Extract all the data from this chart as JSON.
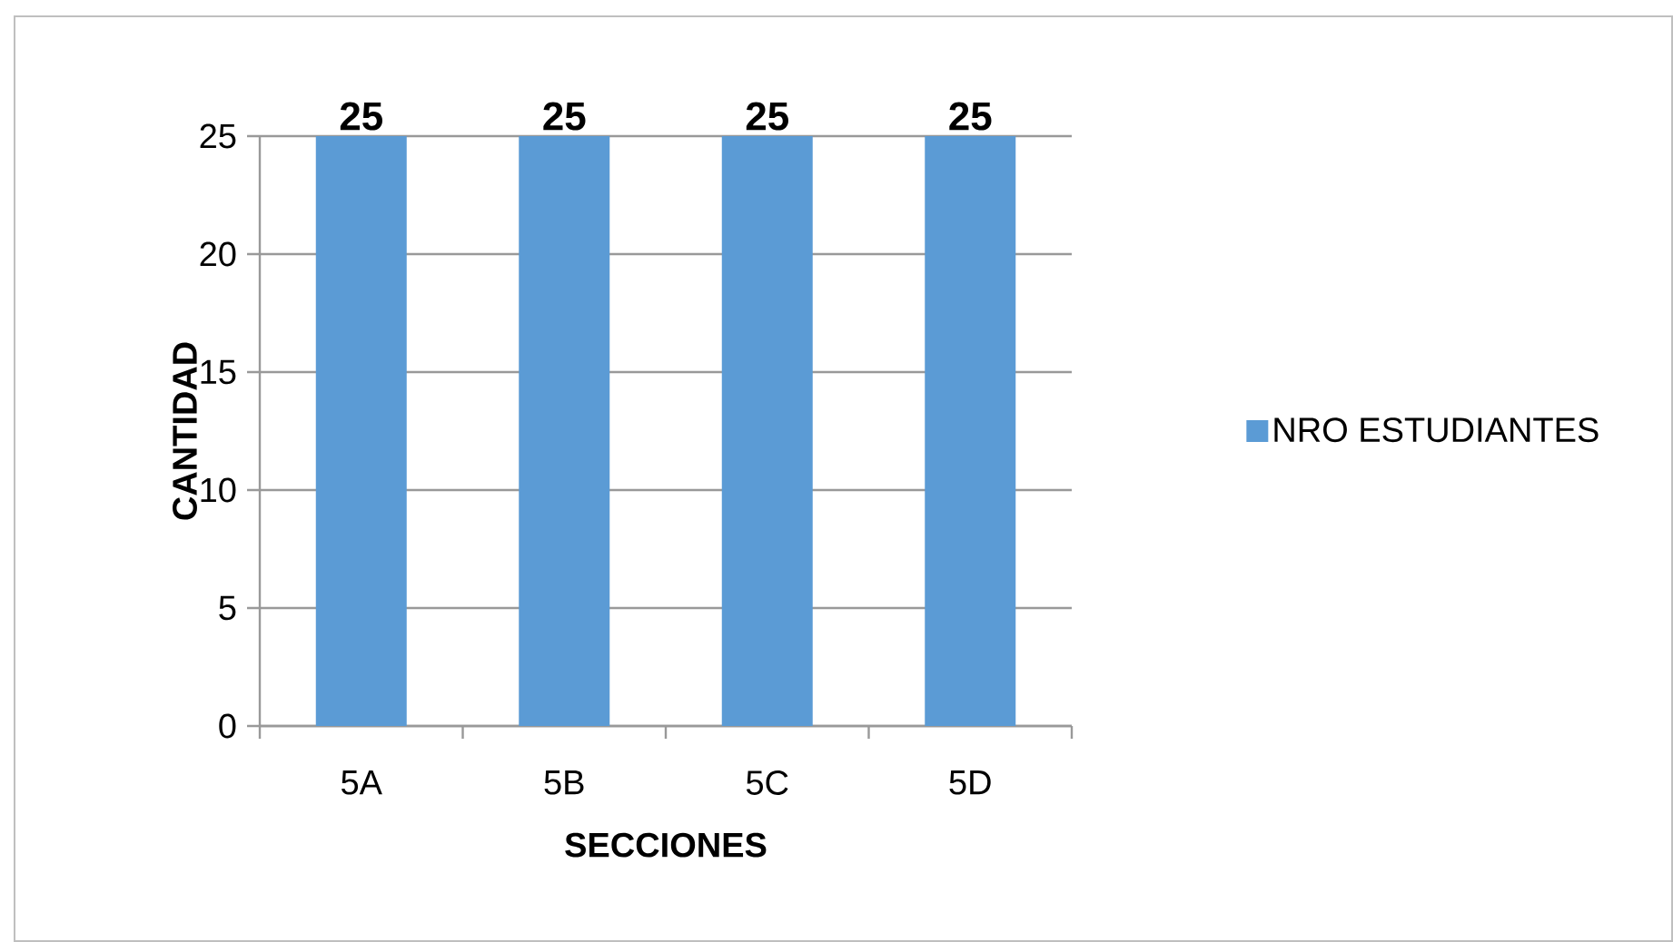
{
  "chart_data": {
    "type": "bar",
    "xlabel": "SECCIONES",
    "ylabel": "CANTIDAD",
    "categories": [
      "5A",
      "5B",
      "5C",
      "5D"
    ],
    "series": [
      {
        "name": "NRO ESTUDIANTES",
        "color": "#5b9bd5",
        "values": [
          25,
          25,
          25,
          25
        ]
      }
    ],
    "ylim": [
      0,
      25
    ],
    "yticks": [
      0,
      5,
      10,
      15,
      20,
      25
    ],
    "grid": "y",
    "legend": "right",
    "data_labels": true
  }
}
